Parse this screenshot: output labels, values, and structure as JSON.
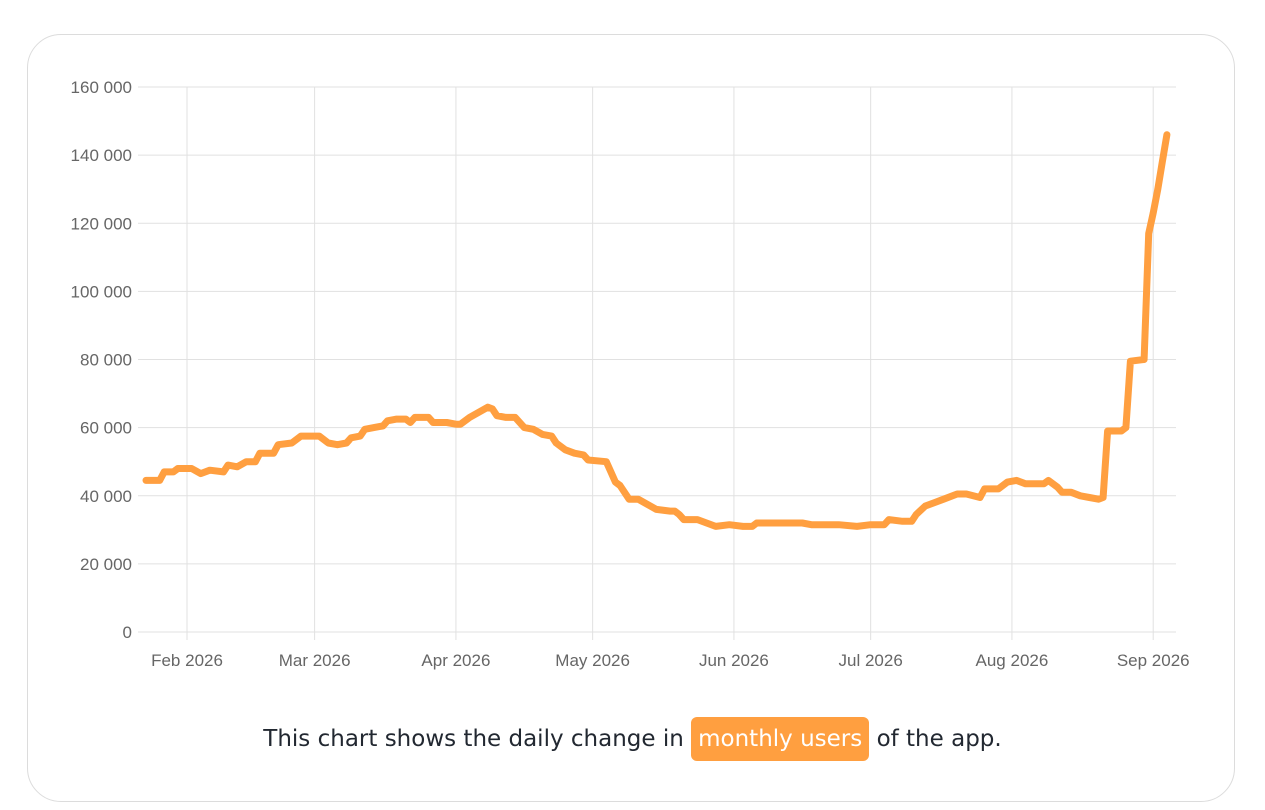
{
  "caption": {
    "prefix": "This chart shows the daily change in",
    "highlight": "monthly users",
    "suffix": "of the app."
  },
  "colors": {
    "line": "#ff9f40",
    "grid": "#e1e1e1",
    "tick_text": "#666666",
    "highlight_bg": "#ff9f40"
  },
  "chart_data": {
    "type": "line",
    "title": "",
    "xlabel": "",
    "ylabel": "",
    "ylim": [
      0,
      160000
    ],
    "xlim": [
      "2026-01-23",
      "2026-09-06"
    ],
    "grid": true,
    "legend": "none",
    "y_ticks": [
      {
        "value": 0,
        "label": "0"
      },
      {
        "value": 20000,
        "label": "20 000"
      },
      {
        "value": 40000,
        "label": "40 000"
      },
      {
        "value": 60000,
        "label": "60 000"
      },
      {
        "value": 80000,
        "label": "80 000"
      },
      {
        "value": 100000,
        "label": "100 000"
      },
      {
        "value": 120000,
        "label": "120 000"
      },
      {
        "value": 140000,
        "label": "140 000"
      },
      {
        "value": 160000,
        "label": "160 000"
      }
    ],
    "x_ticks": [
      {
        "date": "2026-02-01",
        "label": "Feb 2026"
      },
      {
        "date": "2026-03-01",
        "label": "Mar 2026"
      },
      {
        "date": "2026-04-01",
        "label": "Apr 2026"
      },
      {
        "date": "2026-05-01",
        "label": "May 2026"
      },
      {
        "date": "2026-06-01",
        "label": "Jun 2026"
      },
      {
        "date": "2026-07-01",
        "label": "Jul 2026"
      },
      {
        "date": "2026-08-01",
        "label": "Aug 2026"
      },
      {
        "date": "2026-09-01",
        "label": "Sep 2026"
      }
    ],
    "series": [
      {
        "points": [
          [
            "2026-01-23",
            44500
          ],
          [
            "2026-01-26",
            44500
          ],
          [
            "2026-01-27",
            47000
          ],
          [
            "2026-01-29",
            47000
          ],
          [
            "2026-01-30",
            48000
          ],
          [
            "2026-02-02",
            48000
          ],
          [
            "2026-02-04",
            46500
          ],
          [
            "2026-02-06",
            47500
          ],
          [
            "2026-02-09",
            47000
          ],
          [
            "2026-02-10",
            49000
          ],
          [
            "2026-02-12",
            48500
          ],
          [
            "2026-02-14",
            50000
          ],
          [
            "2026-02-16",
            50000
          ],
          [
            "2026-02-17",
            52500
          ],
          [
            "2026-02-20",
            52500
          ],
          [
            "2026-02-21",
            55000
          ],
          [
            "2026-02-24",
            55500
          ],
          [
            "2026-02-26",
            57500
          ],
          [
            "2026-03-02",
            57500
          ],
          [
            "2026-03-04",
            55500
          ],
          [
            "2026-03-06",
            55000
          ],
          [
            "2026-03-08",
            55500
          ],
          [
            "2026-03-09",
            57000
          ],
          [
            "2026-03-11",
            57500
          ],
          [
            "2026-03-12",
            59500
          ],
          [
            "2026-03-14",
            60000
          ],
          [
            "2026-03-16",
            60500
          ],
          [
            "2026-03-17",
            62000
          ],
          [
            "2026-03-19",
            62500
          ],
          [
            "2026-03-21",
            62500
          ],
          [
            "2026-03-22",
            61500
          ],
          [
            "2026-03-23",
            63000
          ],
          [
            "2026-03-26",
            63000
          ],
          [
            "2026-03-27",
            61500
          ],
          [
            "2026-03-30",
            61500
          ],
          [
            "2026-04-01",
            61000
          ],
          [
            "2026-04-02",
            61000
          ],
          [
            "2026-04-04",
            63000
          ],
          [
            "2026-04-06",
            64500
          ],
          [
            "2026-04-08",
            66000
          ],
          [
            "2026-04-09",
            65500
          ],
          [
            "2026-04-10",
            63500
          ],
          [
            "2026-04-12",
            63000
          ],
          [
            "2026-04-14",
            63000
          ],
          [
            "2026-04-16",
            60000
          ],
          [
            "2026-04-18",
            59500
          ],
          [
            "2026-04-20",
            58000
          ],
          [
            "2026-04-22",
            57500
          ],
          [
            "2026-04-23",
            55500
          ],
          [
            "2026-04-25",
            53500
          ],
          [
            "2026-04-27",
            52500
          ],
          [
            "2026-04-29",
            52000
          ],
          [
            "2026-04-30",
            50500
          ],
          [
            "2026-05-04",
            50000
          ],
          [
            "2026-05-05",
            47000
          ],
          [
            "2026-05-06",
            44000
          ],
          [
            "2026-05-07",
            43000
          ],
          [
            "2026-05-09",
            39000
          ],
          [
            "2026-05-11",
            39000
          ],
          [
            "2026-05-13",
            37500
          ],
          [
            "2026-05-15",
            36000
          ],
          [
            "2026-05-18",
            35500
          ],
          [
            "2026-05-19",
            35500
          ],
          [
            "2026-05-20",
            34500
          ],
          [
            "2026-05-21",
            33000
          ],
          [
            "2026-05-24",
            33000
          ],
          [
            "2026-05-26",
            32000
          ],
          [
            "2026-05-28",
            31000
          ],
          [
            "2026-05-31",
            31500
          ],
          [
            "2026-06-03",
            31000
          ],
          [
            "2026-06-05",
            31000
          ],
          [
            "2026-06-06",
            32000
          ],
          [
            "2026-06-09",
            32000
          ],
          [
            "2026-06-11",
            32000
          ],
          [
            "2026-06-16",
            32000
          ],
          [
            "2026-06-18",
            31500
          ],
          [
            "2026-06-24",
            31500
          ],
          [
            "2026-06-28",
            31000
          ],
          [
            "2026-07-01",
            31500
          ],
          [
            "2026-07-04",
            31500
          ],
          [
            "2026-07-05",
            33000
          ],
          [
            "2026-07-08",
            32500
          ],
          [
            "2026-07-10",
            32500
          ],
          [
            "2026-07-11",
            34500
          ],
          [
            "2026-07-13",
            37000
          ],
          [
            "2026-07-15",
            38000
          ],
          [
            "2026-07-17",
            39000
          ],
          [
            "2026-07-20",
            40500
          ],
          [
            "2026-07-22",
            40500
          ],
          [
            "2026-07-25",
            39500
          ],
          [
            "2026-07-26",
            42000
          ],
          [
            "2026-07-29",
            42000
          ],
          [
            "2026-07-31",
            44000
          ],
          [
            "2026-08-02",
            44500
          ],
          [
            "2026-08-04",
            43500
          ],
          [
            "2026-08-08",
            43500
          ],
          [
            "2026-08-09",
            44500
          ],
          [
            "2026-08-11",
            42500
          ],
          [
            "2026-08-12",
            41000
          ],
          [
            "2026-08-14",
            41000
          ],
          [
            "2026-08-16",
            40000
          ],
          [
            "2026-08-18",
            39500
          ],
          [
            "2026-08-20",
            39000
          ],
          [
            "2026-08-21",
            39500
          ],
          [
            "2026-08-22",
            59000
          ],
          [
            "2026-08-25",
            59000
          ],
          [
            "2026-08-26",
            60000
          ],
          [
            "2026-08-27",
            79500
          ],
          [
            "2026-08-30",
            80000
          ],
          [
            "2026-08-31",
            117000
          ],
          [
            "2026-09-01",
            123000
          ],
          [
            "2026-09-02",
            130000
          ],
          [
            "2026-09-03",
            138000
          ],
          [
            "2026-09-04",
            146000
          ]
        ]
      }
    ]
  }
}
